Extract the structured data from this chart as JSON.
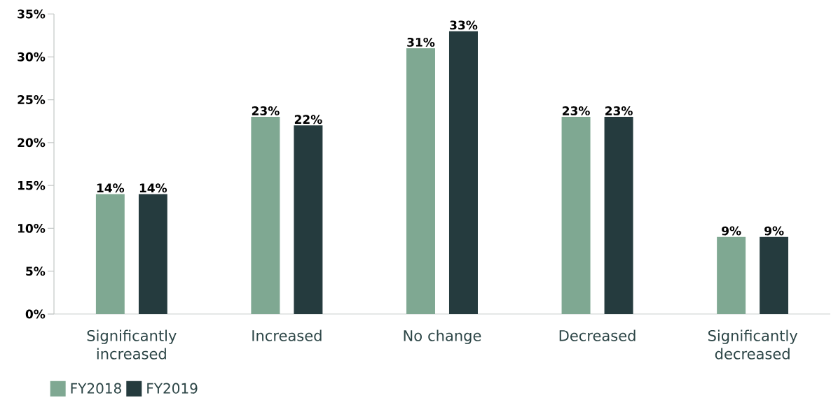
{
  "chart_data": {
    "type": "bar",
    "categories": [
      "Significantly increased",
      "Increased",
      "No change",
      "Decreased",
      "Significantly decreased"
    ],
    "series": [
      {
        "name": "FY2018",
        "color": "#7fa892",
        "values": [
          14,
          23,
          31,
          23,
          9
        ],
        "value_labels": [
          "14%",
          "23%",
          "31%",
          "23%",
          "9%"
        ]
      },
      {
        "name": "FY2019",
        "color": "#253b3e",
        "values": [
          14,
          22,
          33,
          23,
          9
        ],
        "value_labels": [
          "14%",
          "22%",
          "33%",
          "23%",
          "9%"
        ]
      }
    ],
    "ylim": [
      0,
      35
    ],
    "yticks": [
      {
        "value": 0,
        "label": "0%"
      },
      {
        "value": 5,
        "label": "5%"
      },
      {
        "value": 10,
        "label": "10%"
      },
      {
        "value": 15,
        "label": "15%"
      },
      {
        "value": 20,
        "label": "20%"
      },
      {
        "value": 25,
        "label": "25%"
      },
      {
        "value": 30,
        "label": "30%"
      },
      {
        "value": 35,
        "label": "35%"
      }
    ],
    "grid": false,
    "legend": "bottom left"
  }
}
